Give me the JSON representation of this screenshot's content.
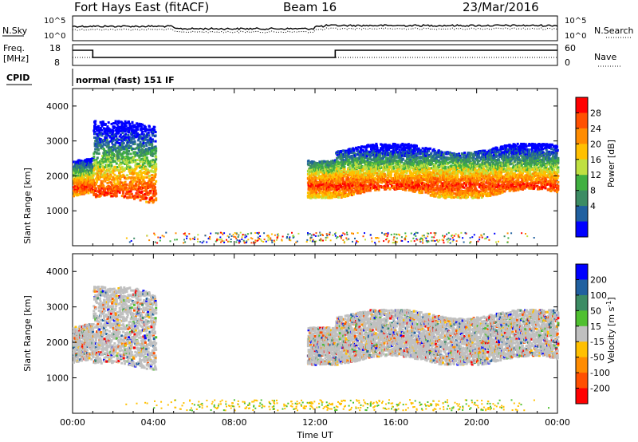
{
  "header": {
    "station": "Fort Hays East (fitACF)",
    "beam": "Beam 16",
    "date": "23/Mar/2016"
  },
  "strip": {
    "nsky_label": "N.Sky",
    "nsearch_label": "N.Search",
    "noise_ticks": [
      "10^5",
      "10^0"
    ],
    "noise_ticks_right": [
      "10^5",
      "10^0"
    ],
    "freq_label_1": "Freq.",
    "freq_label_2": "[MHz]",
    "freq_ticks": [
      "18",
      "8"
    ],
    "nave_label": "Nave",
    "nave_ticks": [
      "60",
      "0"
    ],
    "cpid_label": "CPID",
    "cpid_text": "normal (fast) 151 IF"
  },
  "chart_data": [
    {
      "type": "heatmap",
      "name": "power",
      "ylabel": "Slant Range [km]",
      "ylim": [
        0,
        4500
      ],
      "yticks": [
        "1000",
        "2000",
        "3000",
        "4000"
      ],
      "xlabel": "",
      "xticks": [],
      "colorbar": {
        "label": "Power [dB]",
        "ticks": [
          "28",
          "24",
          "20",
          "16",
          "12",
          "8",
          "4"
        ],
        "colors": [
          "#ff0000",
          "#ff5000",
          "#ff8c00",
          "#ffc000",
          "#bfe040",
          "#40b040",
          "#3c8c64",
          "#2060a0",
          "#0000ff"
        ]
      },
      "echo_regions_hours_km": [
        {
          "t0": 0.0,
          "t1": 1.0,
          "r0": 1450,
          "r1": 2450,
          "peak": "#ff3000"
        },
        {
          "t0": 1.0,
          "t1": 4.1,
          "r0": 1300,
          "r1": 3500,
          "peak": "#ff8c00"
        },
        {
          "t0": 11.6,
          "t1": 13.0,
          "r0": 1500,
          "r1": 2600,
          "peak": "#ff5000"
        },
        {
          "t0": 13.0,
          "t1": 24.0,
          "r0": 1500,
          "r1": 2850,
          "peak": "#ff3000"
        }
      ]
    },
    {
      "type": "heatmap",
      "name": "velocity",
      "ylabel": "Slant Range [km]",
      "ylim": [
        0,
        4500
      ],
      "yticks": [
        "1000",
        "2000",
        "3000",
        "4000"
      ],
      "xlabel": "Time UT",
      "xticks": [
        "00:00",
        "04:00",
        "08:00",
        "12:00",
        "16:00",
        "20:00",
        "00:00"
      ],
      "colorbar": {
        "label": "Velocity [m s^-1]",
        "ticks": [
          "200",
          "100",
          "50",
          "15",
          "-15",
          "-50",
          "-100",
          "-200"
        ],
        "colors": [
          "#0000ff",
          "#2060a0",
          "#3c8c64",
          "#50c030",
          "#c0c0c0",
          "#ffc000",
          "#ff8c00",
          "#ff5000",
          "#ff0000"
        ]
      }
    }
  ]
}
